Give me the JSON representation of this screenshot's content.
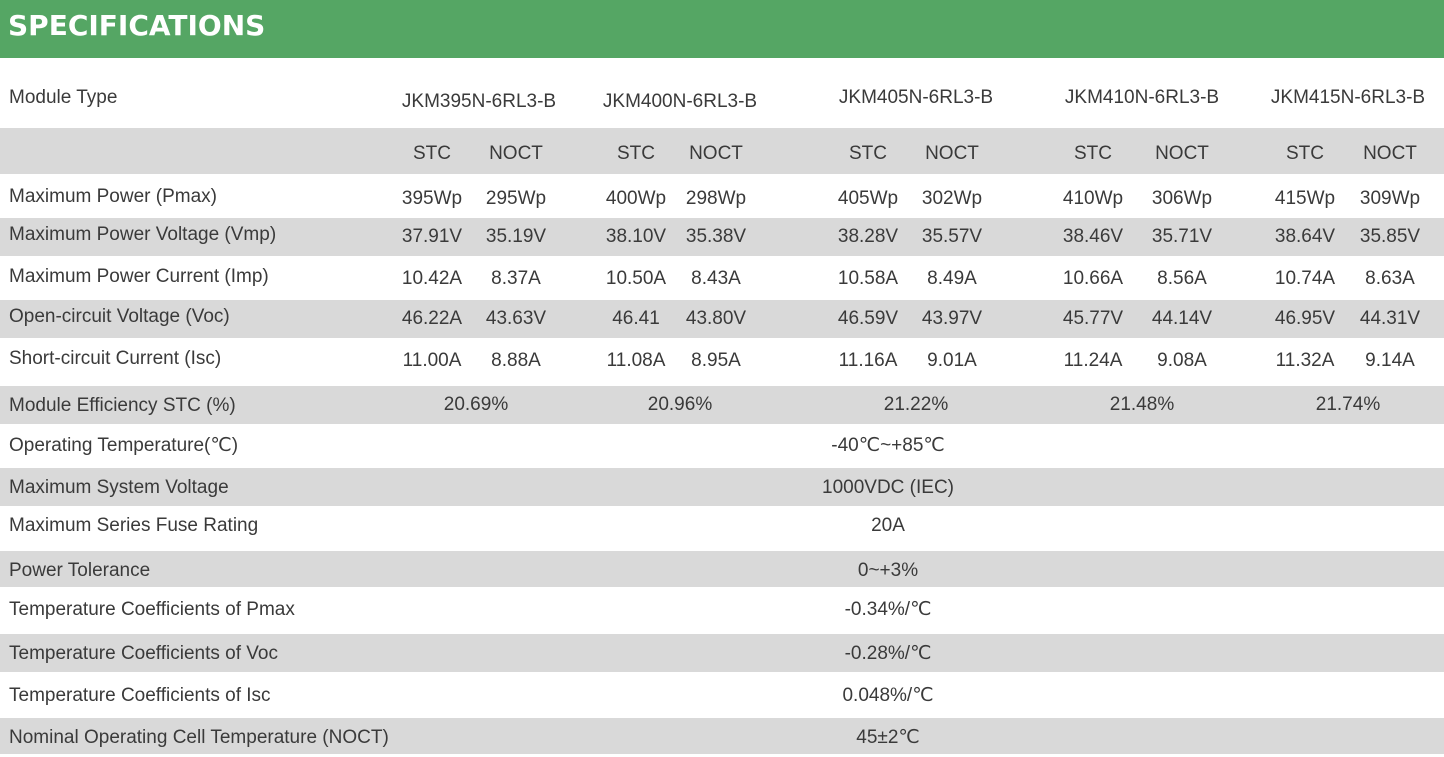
{
  "header": {
    "title": "SPECIFICATIONS"
  },
  "table": {
    "module_type": {
      "label": "Module Type",
      "models": [
        "JKM395N-6RL3-B",
        "JKM400N-6RL3-B",
        "JKM405N-6RL3-B",
        "JKM410N-6RL3-B",
        "JKM415N-6RL3-B"
      ]
    },
    "condition_header": [
      "STC",
      "NOCT",
      "STC",
      "NOCT",
      "STC",
      "NOCT",
      "STC",
      "NOCT",
      "STC",
      "NOCT"
    ],
    "per_model_rows": [
      {
        "label": "Maximum Power (Pmax)",
        "values": [
          "395Wp",
          "295Wp",
          "400Wp",
          "298Wp",
          "405Wp",
          "302Wp",
          "410Wp",
          "306Wp",
          "415Wp",
          "309Wp"
        ]
      },
      {
        "label": "Maximum Power Voltage (Vmp)",
        "values": [
          "37.91V",
          "35.19V",
          "38.10V",
          "35.38V",
          "38.28V",
          "35.57V",
          "38.46V",
          "35.71V",
          "38.64V",
          "35.85V"
        ]
      },
      {
        "label": "Maximum Power Current (Imp)",
        "values": [
          "10.42A",
          "8.37A",
          "10.50A",
          "8.43A",
          "10.58A",
          "8.49A",
          "10.66A",
          "8.56A",
          "10.74A",
          "8.63A"
        ]
      },
      {
        "label": "Open-circuit Voltage (Voc)",
        "values": [
          "46.22A",
          "43.63V",
          "46.41",
          "43.80V",
          "46.59V",
          "43.97V",
          "45.77V",
          "44.14V",
          "46.95V",
          "44.31V"
        ]
      },
      {
        "label": "Short-circuit Current (Isc)",
        "values": [
          "11.00A",
          "8.88A",
          "11.08A",
          "8.95A",
          "11.16A",
          "9.01A",
          "11.24A",
          "9.08A",
          "11.32A",
          "9.14A"
        ]
      }
    ],
    "efficiency": {
      "label": "Module Efficiency STC (%)",
      "values": [
        "20.69%",
        "20.96%",
        "21.22%",
        "21.48%",
        "21.74%"
      ]
    },
    "common_rows": [
      {
        "label": "Operating Temperature(℃)",
        "value": "-40℃~+85℃"
      },
      {
        "label": "Maximum System Voltage",
        "value": "1000VDC (IEC)"
      },
      {
        "label": "Maximum Series Fuse Rating",
        "value": "20A"
      },
      {
        "label": "Power Tolerance",
        "value": "0~+3%"
      },
      {
        "label": "Temperature Coefficients of Pmax",
        "value": "-0.34%/℃"
      },
      {
        "label": "Temperature Coefficients of Voc",
        "value": "-0.28%/℃"
      },
      {
        "label": "Temperature Coefficients of Isc",
        "value": "0.048%/℃"
      },
      {
        "label": "Nominal Operating Cell Temperature  (NOCT)",
        "value": "45±2℃"
      }
    ]
  },
  "colors": {
    "header_green": "#55a664",
    "row_shade": "#d9d9d9",
    "text": "#3a3a3a"
  }
}
